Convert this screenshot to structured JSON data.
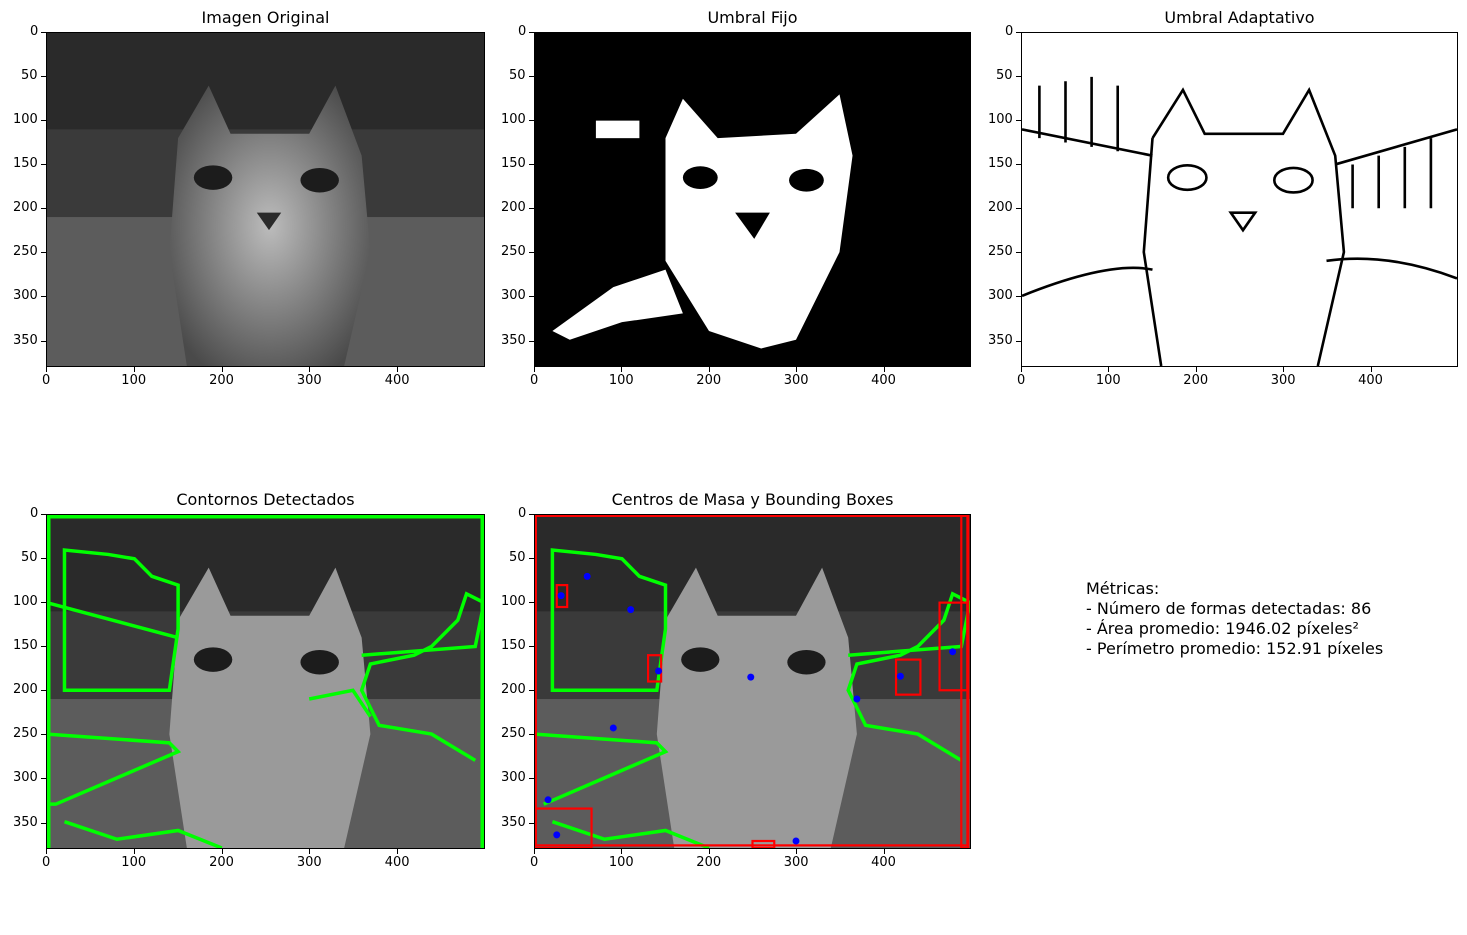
{
  "panels": [
    {
      "title": "Imagen Original"
    },
    {
      "title": "Umbral Fijo"
    },
    {
      "title": "Umbral Adaptativo"
    },
    {
      "title": "Contornos Detectados"
    },
    {
      "title": "Centros de Masa y Bounding Boxes"
    }
  ],
  "axes": {
    "x_ticks": [
      "0",
      "100",
      "200",
      "300",
      "400"
    ],
    "y_ticks": [
      "0",
      "50",
      "100",
      "150",
      "200",
      "250",
      "300",
      "350"
    ]
  },
  "metrics": {
    "heading": "Métricas:",
    "lines": [
      "- Número de formas detectadas: 86",
      "- Área promedio: 1946.02 píxeles²",
      "- Perímetro promedio: 152.91 píxeles"
    ]
  },
  "colors": {
    "contour": "#00ff00",
    "bbox": "#ff0000",
    "centroid": "#0000ff"
  }
}
